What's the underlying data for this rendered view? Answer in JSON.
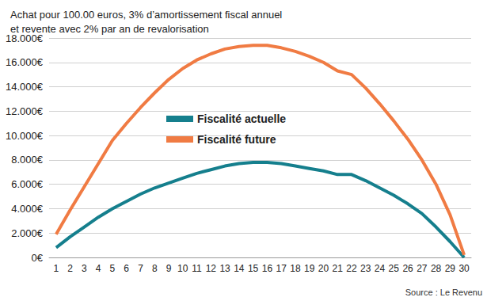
{
  "chart_data": {
    "type": "line",
    "title": "Achat pour 100.00 euros, 3% d’amortissement fiscal annuel\net revente avec 2% par an de revalorisation",
    "annotations": [
      {
        "text": "Source : Le Revenu"
      }
    ],
    "categories": [
      "1",
      "2",
      "3",
      "4",
      "5",
      "6",
      "7",
      "8",
      "9",
      "10",
      "11",
      "12",
      "13",
      "14",
      "15",
      "16",
      "17",
      "18",
      "19",
      "20",
      "21",
      "22",
      "23",
      "24",
      "25",
      "26",
      "27",
      "28",
      "29",
      "30"
    ],
    "series": [
      {
        "name": "Fiscalité actuelle",
        "color": "#157f8d",
        "line_style": "solid",
        "values": [
          800,
          1700,
          2500,
          3300,
          4000,
          4600,
          5200,
          5700,
          6100,
          6500,
          6900,
          7200,
          7500,
          7700,
          7800,
          7800,
          7700,
          7500,
          7300,
          7100,
          6800,
          6800,
          6300,
          5700,
          5100,
          4400,
          3600,
          2500,
          1300,
          0
        ]
      },
      {
        "name": "Fiscalité future",
        "color": "#f07b43",
        "line_style": "solid",
        "values": [
          1900,
          3900,
          5800,
          7700,
          9600,
          11000,
          12300,
          13500,
          14600,
          15500,
          16200,
          16700,
          17100,
          17300,
          17400,
          17400,
          17200,
          16900,
          16500,
          16000,
          15300,
          15000,
          13900,
          12600,
          11200,
          9700,
          8000,
          6000,
          3500,
          200
        ]
      }
    ],
    "ylim": [
      0,
      18000
    ],
    "yticks": [
      {
        "value": 0,
        "label": "0€"
      },
      {
        "value": 2000,
        "label": "2.000€"
      },
      {
        "value": 4000,
        "label": "4.000€"
      },
      {
        "value": 6000,
        "label": "6.000€"
      },
      {
        "value": 8000,
        "label": "8.000€"
      },
      {
        "value": 10000,
        "label": "10.000€"
      },
      {
        "value": 12000,
        "label": "12.000€"
      },
      {
        "value": 14000,
        "label": "14.000€"
      },
      {
        "value": 16000,
        "label": "16.000€"
      },
      {
        "value": 18000,
        "label": "18.000€"
      }
    ],
    "grid": true,
    "legend": "center"
  }
}
